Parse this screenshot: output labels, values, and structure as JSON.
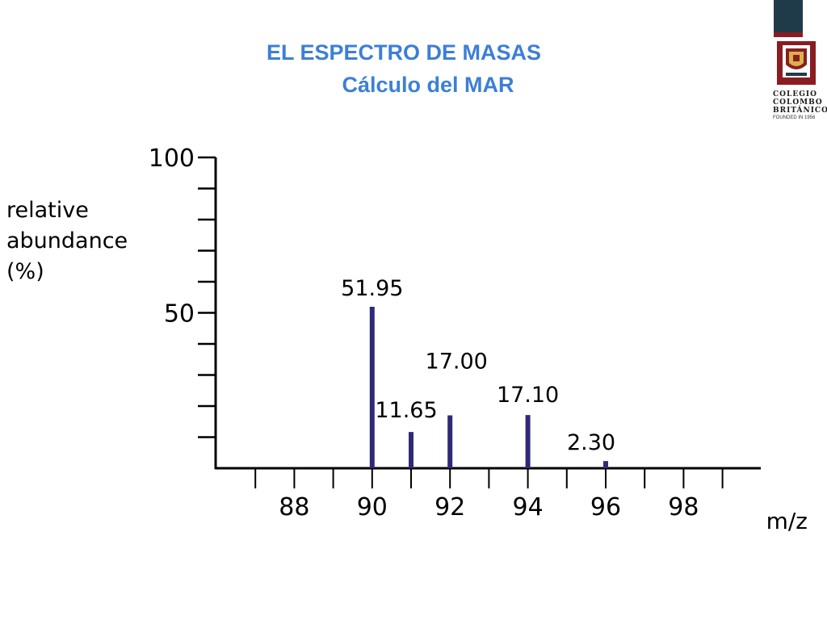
{
  "slide": {
    "title_line1": "EL ESPECTRO DE MASAS",
    "title_line2": "Cálculo del MAR"
  },
  "logo": {
    "line1": "COLEGIO",
    "line2": "COLOMBO",
    "line3": "BRITÁNICO",
    "founded": "FOUNDED IN 1956",
    "colors": {
      "navy": "#1f3b4a",
      "red": "#8a1d22",
      "gold": "#d9b24a"
    }
  },
  "chart_data": {
    "type": "bar",
    "x": [
      90,
      91,
      92,
      94,
      96
    ],
    "values": [
      51.95,
      11.65,
      17.0,
      17.1,
      2.3
    ],
    "value_labels": [
      "51.95",
      "11.65",
      "17.00",
      "17.10",
      "2.30"
    ],
    "ylabel_lines": [
      "relative",
      "abundance",
      "(%)"
    ],
    "xlabel": "m/z",
    "xticks": [
      88,
      90,
      92,
      94,
      96,
      98
    ],
    "yticks": [
      50,
      100
    ],
    "xlim": [
      86,
      100
    ],
    "ylim": [
      0,
      100
    ],
    "bar_color": "#2e2a78",
    "grid": false
  }
}
